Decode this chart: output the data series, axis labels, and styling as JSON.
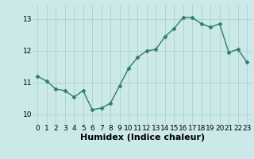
{
  "x": [
    0,
    1,
    2,
    3,
    4,
    5,
    6,
    7,
    8,
    9,
    10,
    11,
    12,
    13,
    14,
    15,
    16,
    17,
    18,
    19,
    20,
    21,
    22,
    23
  ],
  "y": [
    11.2,
    11.05,
    10.8,
    10.75,
    10.55,
    10.75,
    10.15,
    10.2,
    10.35,
    10.9,
    11.45,
    11.8,
    12.0,
    12.05,
    12.45,
    12.7,
    13.05,
    13.05,
    12.85,
    12.75,
    12.85,
    11.95,
    12.05,
    11.65
  ],
  "line_color": "#2e7d6e",
  "marker": "D",
  "markersize": 2.5,
  "linewidth": 1.0,
  "bg_color": "#cce9e9",
  "grid_color": "#b0d4d4",
  "xlabel": "Humidex (Indice chaleur)",
  "xlabel_fontsize": 8,
  "xlabel_bold": true,
  "yticks": [
    10,
    11,
    12,
    13
  ],
  "xticks": [
    0,
    1,
    2,
    3,
    4,
    5,
    6,
    7,
    8,
    9,
    10,
    11,
    12,
    13,
    14,
    15,
    16,
    17,
    18,
    19,
    20,
    21,
    22,
    23
  ],
  "ylim": [
    9.7,
    13.45
  ],
  "xlim": [
    -0.5,
    23.5
  ],
  "tick_fontsize": 6.5
}
